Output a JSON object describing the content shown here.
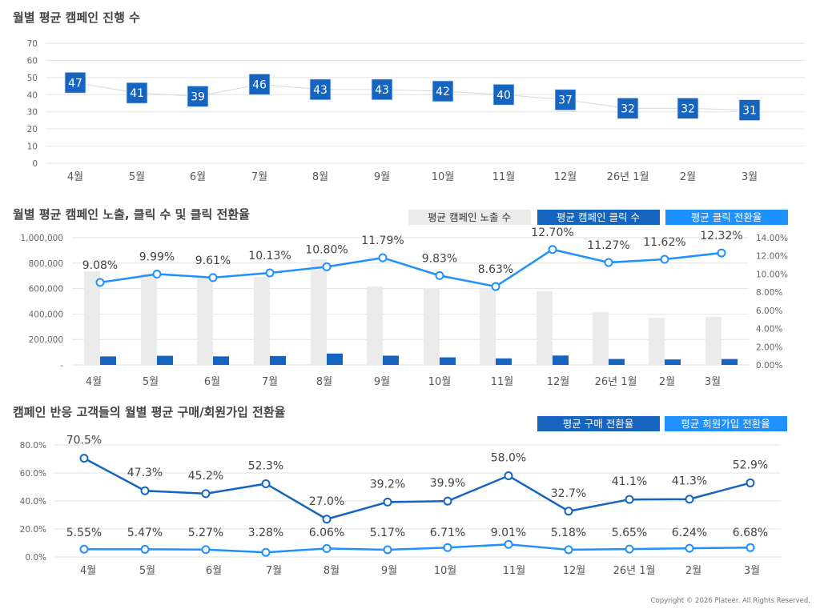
{
  "colors": {
    "dark_blue": "#1565c0",
    "light_blue": "#1e90ff",
    "gray_bar": "#ebebeb",
    "grid": "#e2e2e2"
  },
  "footer": {
    "copyright": "Copyright © 2026 Plateer. All Rights Reserved."
  },
  "chart_data": [
    {
      "type": "line",
      "title": "월별 평균 캠페인 진행 수",
      "categories": [
        "4월",
        "5월",
        "6월",
        "7월",
        "8월",
        "9월",
        "10월",
        "11월",
        "12월",
        "26년 1월",
        "2월",
        "3월"
      ],
      "ylim": [
        0,
        70
      ],
      "yticks": [
        "0",
        "10",
        "20",
        "30",
        "40",
        "50",
        "60",
        "70"
      ],
      "grid": true,
      "marker": "square-label",
      "series": [
        {
          "values": [
            47,
            41,
            39,
            46,
            43,
            43,
            42,
            40,
            37,
            32,
            32,
            31
          ]
        }
      ]
    },
    {
      "type": "bar+line",
      "title": "월별 평균 캠페인 노출, 클릭 수 및 클릭 전환율",
      "categories": [
        "4월",
        "5월",
        "6월",
        "7월",
        "8월",
        "9월",
        "10월",
        "11월",
        "12월",
        "26년 1월",
        "2월",
        "3월"
      ],
      "ylim_left": [
        0,
        1000000
      ],
      "yticks_left": [
        "-",
        "200,000",
        "400,000",
        "600,000",
        "800,000",
        "1,000,000"
      ],
      "ylim_right": [
        0,
        14
      ],
      "yticks_right": [
        "0.00%",
        "2.00%",
        "4.00%",
        "6.00%",
        "8.00%",
        "10.00%",
        "12.00%",
        "14.00%"
      ],
      "grid": true,
      "legend_position": "top-right",
      "series": [
        {
          "name": "평균 캠페인 노출 수",
          "type": "bar",
          "axis": "left",
          "values": [
            736000,
            717000,
            698000,
            692000,
            830000,
            616000,
            604000,
            597000,
            579000,
            415000,
            371000,
            377000
          ]
        },
        {
          "name": "평균 캠페인 클릭 수",
          "type": "bar",
          "axis": "left",
          "values": [
            66800,
            71600,
            67000,
            70000,
            89600,
            72600,
            59400,
            51500,
            73500,
            46800,
            43100,
            46400
          ]
        },
        {
          "name": "평균 클릭 전환율",
          "type": "line",
          "axis": "right",
          "values": [
            9.08,
            9.99,
            9.61,
            10.13,
            10.8,
            11.79,
            9.83,
            8.63,
            12.7,
            11.27,
            11.62,
            12.32
          ],
          "labels": [
            "9.08%",
            "9.99%",
            "9.61%",
            "10.13%",
            "10.80%",
            "11.79%",
            "9.83%",
            "8.63%",
            "12.70%",
            "11.27%",
            "11.62%",
            "12.32%"
          ]
        }
      ]
    },
    {
      "type": "line",
      "title": "캠페인 반응 고객들의 월별 평균 구매/회원가입 전환율",
      "categories": [
        "4월",
        "5월",
        "6월",
        "7월",
        "8월",
        "9월",
        "10월",
        "11월",
        "12월",
        "26년 1월",
        "2월",
        "3월"
      ],
      "ylim": [
        0,
        80
      ],
      "yticks": [
        "0.0%",
        "20.0%",
        "40.0%",
        "60.0%",
        "80.0%"
      ],
      "grid": true,
      "legend_position": "top-right",
      "series": [
        {
          "name": "평균 구매 전환율",
          "values": [
            70.5,
            47.3,
            45.2,
            52.3,
            27.0,
            39.2,
            39.9,
            58.0,
            32.7,
            41.1,
            41.3,
            52.9
          ],
          "labels": [
            "70.5%",
            "47.3%",
            "45.2%",
            "52.3%",
            "27.0%",
            "39.2%",
            "39.9%",
            "58.0%",
            "32.7%",
            "41.1%",
            "41.3%",
            "52.9%"
          ]
        },
        {
          "name": "평균 회원가입 전환율",
          "values": [
            5.55,
            5.47,
            5.27,
            3.28,
            6.06,
            5.17,
            6.71,
            9.01,
            5.18,
            5.65,
            6.24,
            6.68
          ],
          "labels": [
            "5.55%",
            "5.47%",
            "5.27%",
            "3.28%",
            "6.06%",
            "5.17%",
            "6.71%",
            "9.01%",
            "5.18%",
            "5.65%",
            "6.24%",
            "6.68%"
          ]
        }
      ]
    }
  ]
}
